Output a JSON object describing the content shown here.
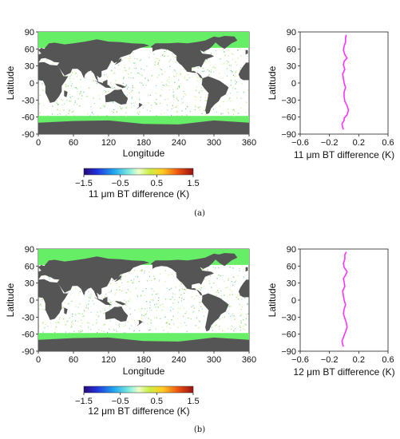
{
  "panels": [
    {
      "caption": "(a)",
      "map": {
        "title": "",
        "xlabel": "Longitude",
        "ylabel": "Latitude",
        "xticks": [
          "0",
          "60",
          "120",
          "180",
          "240",
          "300",
          "360"
        ],
        "yticks": [
          "90",
          "60",
          "30",
          "0",
          "-30",
          "-60",
          "-90"
        ],
        "xlim": [
          0,
          360
        ],
        "ylim": [
          -90,
          90
        ],
        "land_color": "#555555",
        "ice_color": "#66ee66"
      },
      "colorbar": {
        "label": "11 μm BT difference (K)",
        "ticks": [
          "-1.5",
          "-0.5",
          "0.5",
          "1.5"
        ],
        "range": [
          -1.5,
          1.5
        ]
      },
      "profile": {
        "xlabel": "11 μm BT difference (K)",
        "ylabel": "Latitude",
        "xticks": [
          "-0.6",
          "-0.2",
          "0.2",
          "0.6"
        ],
        "yticks": [
          "90",
          "60",
          "30",
          "0",
          "-30",
          "-60",
          "-90"
        ],
        "line_color": "#ff33ff"
      }
    },
    {
      "caption": "(b)",
      "map": {
        "title": "",
        "xlabel": "Longitude",
        "ylabel": "Latitude",
        "xticks": [
          "0",
          "60",
          "120",
          "180",
          "240",
          "300",
          "360"
        ],
        "yticks": [
          "90",
          "60",
          "30",
          "0",
          "-30",
          "-60",
          "-90"
        ],
        "xlim": [
          0,
          360
        ],
        "ylim": [
          -90,
          90
        ],
        "land_color": "#555555",
        "ice_color": "#66ee66"
      },
      "colorbar": {
        "label": "12 μm BT difference (K)",
        "ticks": [
          "-1.5",
          "-0.5",
          "0.5",
          "1.5"
        ],
        "range": [
          -1.5,
          1.5
        ]
      },
      "profile": {
        "xlabel": "12 μm BT difference (K)",
        "ylabel": "Latitude",
        "xticks": [
          "-0.6",
          "-0.2",
          "0.2",
          "0.6"
        ],
        "yticks": [
          "90",
          "60",
          "30",
          "0",
          "-30",
          "-60",
          "-90"
        ],
        "line_color": "#ff33ff"
      }
    }
  ],
  "chart_data": [
    {
      "type": "line",
      "title": "",
      "xlabel": "11 μm BT difference (K)",
      "ylabel": "Latitude",
      "xlim": [
        -0.6,
        0.6
      ],
      "ylim": [
        -90,
        90
      ],
      "series": [
        {
          "x": [
            0.03,
            0.02,
            0.02,
            0.0,
            -0.01,
            0.01,
            0.04,
            0.0,
            -0.01,
            0.01,
            -0.02,
            -0.01,
            0.0,
            0.02,
            0.0,
            0.0,
            0.01,
            0.04,
            0.06,
            0.04,
            0.0,
            0.0,
            -0.03,
            -0.02,
            -0.01
          ],
          "y": [
            85,
            80,
            72,
            65,
            58,
            50,
            44,
            38,
            32,
            24,
            16,
            8,
            0,
            -8,
            -16,
            -24,
            -32,
            -40,
            -48,
            -56,
            -62,
            -66,
            -72,
            -78,
            -82
          ]
        }
      ]
    },
    {
      "type": "line",
      "title": "",
      "xlabel": "12 μm BT difference (K)",
      "ylabel": "Latitude",
      "xlim": [
        -0.6,
        0.6
      ],
      "ylim": [
        -90,
        90
      ],
      "series": [
        {
          "x": [
            0.03,
            0.01,
            0.01,
            -0.01,
            0.0,
            0.04,
            0.02,
            -0.01,
            0.0,
            0.01,
            -0.02,
            -0.01,
            0.0,
            0.02,
            0.0,
            -0.01,
            0.01,
            0.03,
            0.04,
            0.02,
            0.0,
            -0.01,
            -0.03,
            -0.02,
            -0.01
          ],
          "y": [
            85,
            80,
            72,
            65,
            58,
            50,
            44,
            38,
            32,
            24,
            16,
            8,
            0,
            -8,
            -16,
            -24,
            -32,
            -40,
            -48,
            -56,
            -62,
            -66,
            -72,
            -78,
            -82
          ]
        }
      ]
    }
  ]
}
